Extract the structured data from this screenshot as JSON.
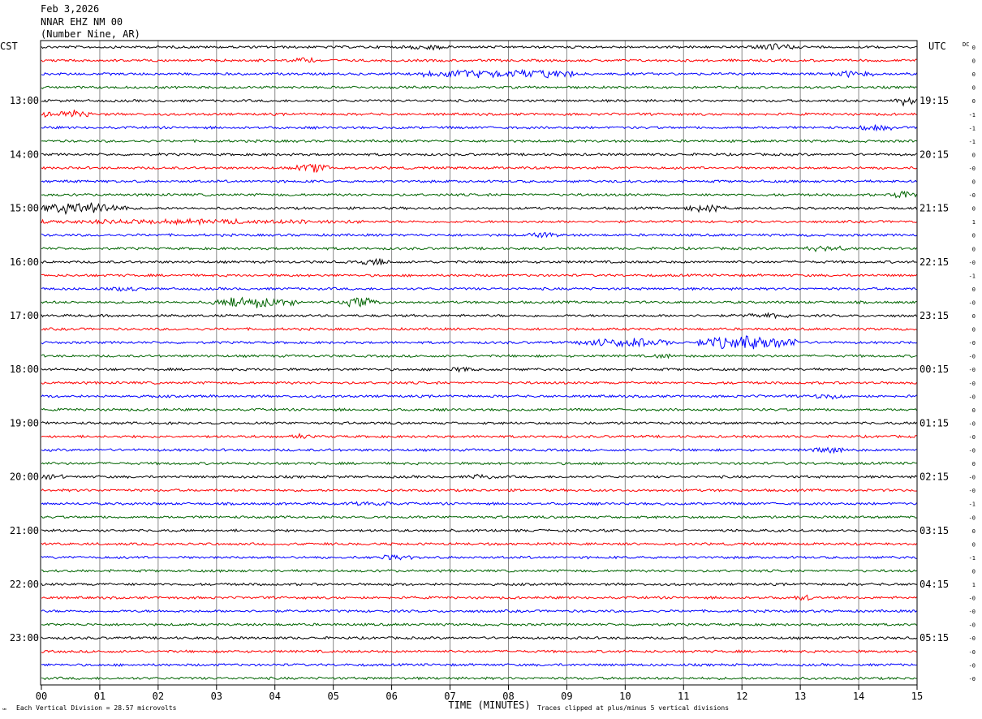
{
  "header": {
    "date": "Feb 3,2026",
    "station": "NNAR EHZ NM 00",
    "location": "(Number Nine, AR)"
  },
  "chart_data": {
    "type": "line",
    "left_label": "CST",
    "right_label": "UTC",
    "dc_label": "DC",
    "xlabel": "TIME (MINUTES)",
    "x_ticks": [
      "00",
      "01",
      "02",
      "03",
      "04",
      "05",
      "06",
      "07",
      "08",
      "09",
      "10",
      "11",
      "12",
      "13",
      "14",
      "15"
    ],
    "xlim": [
      0,
      15
    ],
    "left_hour_labels": [
      "13:00",
      "14:00",
      "15:00",
      "16:00",
      "17:00",
      "18:00",
      "19:00",
      "20:00",
      "21:00",
      "22:00",
      "23:00"
    ],
    "right_hour_labels": [
      "19:15",
      "20:15",
      "21:15",
      "22:15",
      "23:15",
      "00:15",
      "01:15",
      "02:15",
      "03:15",
      "04:15",
      "05:15"
    ],
    "trace_colors": [
      "#000000",
      "#ff0000",
      "#0000ff",
      "#006400"
    ],
    "dc_offsets": [
      "0",
      "0",
      "0",
      "0",
      "0",
      "-1",
      "-1",
      "-1",
      "0",
      "-0",
      "0",
      "-0",
      "0",
      "1",
      "0",
      "0",
      "-0",
      "-1",
      "0",
      "-0",
      "0",
      "0",
      "-0",
      "-0",
      "-0",
      "-0",
      "-0",
      "0",
      "-0",
      "-0",
      "-0",
      "0",
      "-0",
      "-0",
      "-1",
      "-0",
      "0",
      "0",
      "-1",
      "0",
      "1",
      "-0",
      "-0",
      "-0",
      "-0",
      "-0",
      "-0",
      "-0"
    ],
    "events": [
      {
        "trace": 0,
        "start": 6.3,
        "end": 6.9,
        "amp": 2.5
      },
      {
        "trace": 0,
        "start": 12.2,
        "end": 12.9,
        "amp": 3
      },
      {
        "trace": 1,
        "start": 4.3,
        "end": 4.7,
        "amp": 2.0
      },
      {
        "trace": 2,
        "start": 6.5,
        "end": 9.3,
        "amp": 4.0
      },
      {
        "trace": 2,
        "start": 13.5,
        "end": 14.3,
        "amp": 2.5
      },
      {
        "trace": 4,
        "start": 14.6,
        "end": 15.0,
        "amp": 3.5
      },
      {
        "trace": 5,
        "start": 0.0,
        "end": 0.9,
        "amp": 3.5
      },
      {
        "trace": 6,
        "start": 14.0,
        "end": 14.6,
        "amp": 2.2
      },
      {
        "trace": 9,
        "start": 4.3,
        "end": 5.0,
        "amp": 3.5
      },
      {
        "trace": 11,
        "start": 14.6,
        "end": 15.0,
        "amp": 4.0
      },
      {
        "trace": 12,
        "start": 0.0,
        "end": 1.5,
        "amp": 6.0
      },
      {
        "trace": 12,
        "start": 11.0,
        "end": 11.8,
        "amp": 3.0
      },
      {
        "trace": 13,
        "start": 0.0,
        "end": 5.5,
        "amp": 1.6
      },
      {
        "trace": 14,
        "start": 8.3,
        "end": 8.9,
        "amp": 2.0
      },
      {
        "trace": 15,
        "start": 13.0,
        "end": 13.8,
        "amp": 2.0
      },
      {
        "trace": 16,
        "start": 5.5,
        "end": 6.0,
        "amp": 2.5
      },
      {
        "trace": 18,
        "start": 1.2,
        "end": 1.7,
        "amp": 2.0
      },
      {
        "trace": 19,
        "start": 2.9,
        "end": 4.4,
        "amp": 5.0
      },
      {
        "trace": 19,
        "start": 5.1,
        "end": 5.8,
        "amp": 4.0
      },
      {
        "trace": 20,
        "start": 12.0,
        "end": 12.8,
        "amp": 2.0
      },
      {
        "trace": 22,
        "start": 9.2,
        "end": 10.8,
        "amp": 4.0
      },
      {
        "trace": 22,
        "start": 11.2,
        "end": 13.0,
        "amp": 6.5
      },
      {
        "trace": 23,
        "start": 10.5,
        "end": 11.0,
        "amp": 1.6
      },
      {
        "trace": 24,
        "start": 7.0,
        "end": 7.4,
        "amp": 1.8
      },
      {
        "trace": 26,
        "start": 13.2,
        "end": 13.8,
        "amp": 1.8
      },
      {
        "trace": 29,
        "start": 4.2,
        "end": 4.6,
        "amp": 1.6
      },
      {
        "trace": 30,
        "start": 13.2,
        "end": 14.0,
        "amp": 2.0
      },
      {
        "trace": 32,
        "start": 0.0,
        "end": 0.4,
        "amp": 2.2
      },
      {
        "trace": 32,
        "start": 7.3,
        "end": 7.8,
        "amp": 2.0
      },
      {
        "trace": 34,
        "start": 5.3,
        "end": 6.0,
        "amp": 1.6
      },
      {
        "trace": 38,
        "start": 5.8,
        "end": 6.4,
        "amp": 2.0
      },
      {
        "trace": 41,
        "start": 12.9,
        "end": 13.2,
        "amp": 2.5
      }
    ],
    "footer_left": "Each Vertical Division =   28.57 microvolts",
    "footer_right": "Traces clipped at plus/minus 5 vertical divisions",
    "corner_mark": "℠"
  }
}
